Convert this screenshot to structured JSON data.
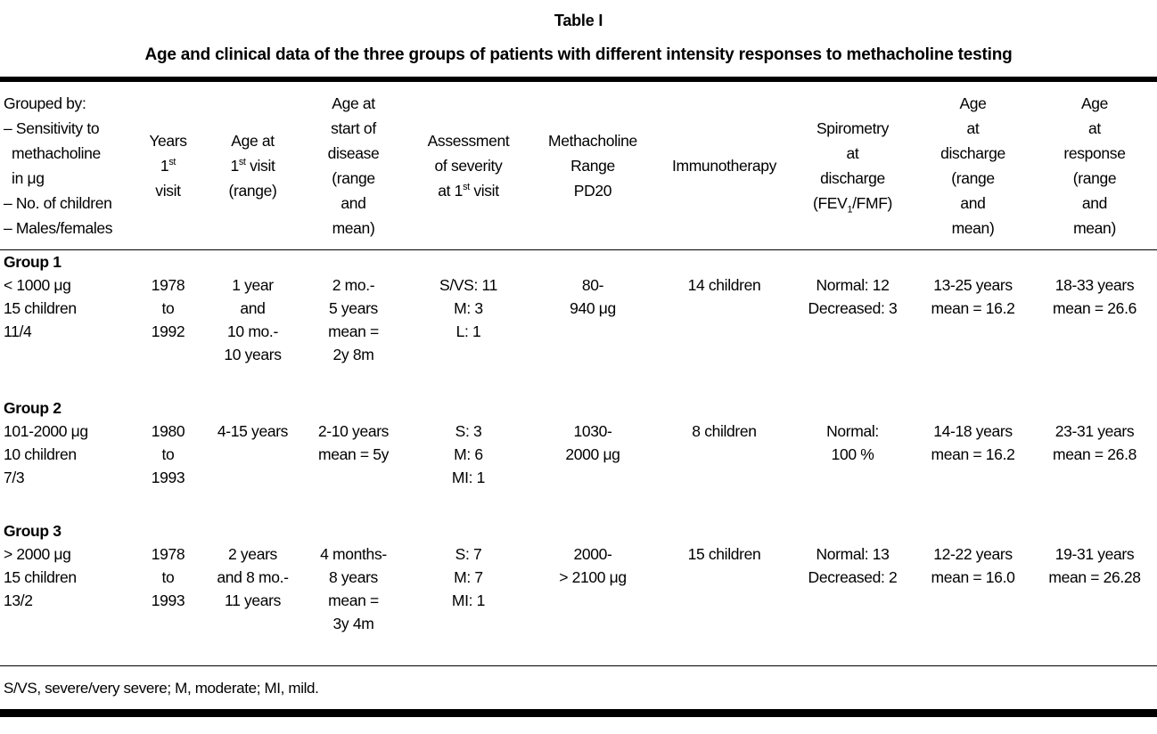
{
  "table": {
    "title": "Table I",
    "subtitle": "Age and clinical data of the three groups of patients with different intensity responses to methacholine testing",
    "headers": [
      {
        "id": "grouped-by",
        "lines": [
          "Grouped by:",
          "– Sensitivity to",
          "  methacholine",
          "  in μg",
          "– No. of children",
          "– Males/females"
        ]
      },
      {
        "id": "years-first-visit",
        "lines": [
          "Years",
          "1st",
          "visit"
        ]
      },
      {
        "id": "age-at-first-visit",
        "lines": [
          "Age at",
          "1st visit",
          "(range)"
        ]
      },
      {
        "id": "age-at-start-of-disease",
        "lines": [
          "Age at",
          "start of",
          "disease",
          "(range",
          "and",
          "mean)"
        ]
      },
      {
        "id": "assessment-of-severity",
        "lines": [
          "Assessment",
          "of severity",
          "at 1st visit"
        ]
      },
      {
        "id": "methacholine-range",
        "lines": [
          "Methacholine",
          "Range",
          "PD20"
        ]
      },
      {
        "id": "immunotherapy",
        "lines": [
          "Immunotherapy"
        ]
      },
      {
        "id": "spirometry-at-discharge",
        "lines": [
          "Spirometry",
          "at",
          "discharge",
          "(FEV1/FMF)"
        ]
      },
      {
        "id": "age-at-discharge",
        "lines": [
          "Age",
          "at",
          "discharge",
          "(range",
          "and",
          "mean)"
        ]
      },
      {
        "id": "age-at-response",
        "lines": [
          "Age",
          "at",
          "response",
          "(range",
          "and",
          "mean)"
        ]
      }
    ],
    "groups": [
      {
        "label": "Group 1",
        "cells": [
          [
            "< 1000 μg",
            "15 children",
            "11/4"
          ],
          [
            "1978",
            "to",
            "1992"
          ],
          [
            "1 year",
            "and",
            "10 mo.-",
            "10 years"
          ],
          [
            "2 mo.-",
            "5 years",
            "mean =",
            "2y 8m"
          ],
          [
            "S/VS: 11",
            "M: 3",
            "L: 1"
          ],
          [
            "80-",
            "940 μg"
          ],
          [
            "14 children"
          ],
          [
            "Normal: 12",
            "Decreased: 3"
          ],
          [
            "13-25 years",
            "mean = 16.2"
          ],
          [
            "18-33 years",
            "mean = 26.6"
          ]
        ]
      },
      {
        "label": "Group 2",
        "cells": [
          [
            "101-2000 μg",
            "10 children",
            "7/3"
          ],
          [
            "1980",
            "to",
            "1993"
          ],
          [
            "4-15 years"
          ],
          [
            "2-10 years",
            "mean = 5y"
          ],
          [
            "S: 3",
            "M: 6",
            "MI: 1"
          ],
          [
            "1030-",
            "2000 μg"
          ],
          [
            "8 children"
          ],
          [
            "Normal:",
            "100 %"
          ],
          [
            "14-18 years",
            "mean = 16.2"
          ],
          [
            "23-31 years",
            "mean = 26.8"
          ]
        ]
      },
      {
        "label": "Group 3",
        "cells": [
          [
            "> 2000 μg",
            "15 children",
            "13/2"
          ],
          [
            "1978",
            "to",
            "1993"
          ],
          [
            "2 years",
            "and 8 mo.-",
            "11 years"
          ],
          [
            "4 months-",
            "8 years",
            "mean =",
            "3y 4m"
          ],
          [
            "S: 7",
            "M: 7",
            "MI: 1"
          ],
          [
            "2000-",
            "> 2100 μg"
          ],
          [
            "15 children"
          ],
          [
            "Normal: 13",
            "Decreased: 2"
          ],
          [
            "12-22 years",
            "mean = 16.0"
          ],
          [
            "19-31 years",
            "mean = 26.28"
          ]
        ]
      }
    ],
    "footnote": "S/VS, severe/very severe; M, moderate; MI, mild."
  }
}
